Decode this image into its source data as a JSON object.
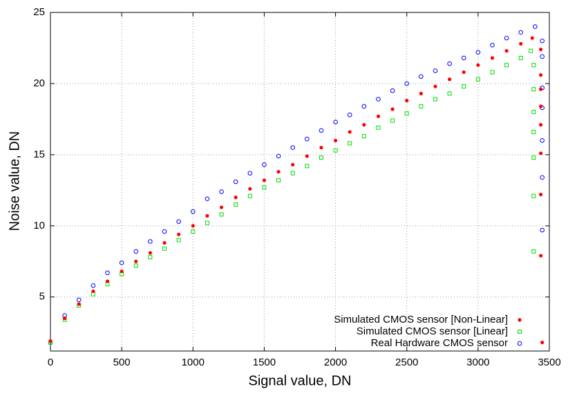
{
  "chart_data": {
    "type": "scatter",
    "xlabel": "Signal value, DN",
    "ylabel": "Noise value, DN",
    "xlim": [
      0,
      3500
    ],
    "ylim": [
      1.2,
      25
    ],
    "xticks": [
      0,
      500,
      1000,
      1500,
      2000,
      2500,
      3000,
      3500
    ],
    "yticks": [
      5,
      10,
      15,
      20,
      25
    ],
    "grid": true,
    "legend": "lower right",
    "series": [
      {
        "name": "Simulated CMOS sensor [Non-Linear]",
        "color": "#ff0000",
        "marker": "filled-circle",
        "x": [
          0,
          100,
          200,
          300,
          400,
          500,
          600,
          700,
          800,
          900,
          1000,
          1100,
          1200,
          1300,
          1400,
          1500,
          1600,
          1700,
          1800,
          1900,
          2000,
          2100,
          2200,
          2300,
          2400,
          2500,
          2600,
          2700,
          2800,
          2900,
          3000,
          3100,
          3200,
          3300,
          3380,
          3440,
          3440,
          3440,
          3440,
          3440,
          3440,
          3440,
          3440,
          3450
        ],
        "values": [
          1.9,
          3.5,
          4.5,
          5.4,
          6.1,
          6.8,
          7.5,
          8.1,
          8.8,
          9.4,
          10.0,
          10.7,
          11.3,
          12.0,
          12.6,
          13.2,
          13.8,
          14.3,
          14.9,
          15.5,
          16.0,
          16.6,
          17.1,
          17.7,
          18.2,
          18.8,
          19.3,
          19.8,
          20.3,
          20.8,
          21.3,
          21.8,
          22.3,
          22.8,
          23.2,
          22.4,
          20.6,
          19.6,
          18.4,
          17.1,
          15.1,
          12.2,
          7.9,
          1.8
        ]
      },
      {
        "name": "Simulated CMOS sensor [Linear]",
        "color": "#00dd00",
        "marker": "open-square",
        "x": [
          0,
          100,
          200,
          300,
          400,
          500,
          600,
          700,
          800,
          900,
          1000,
          1100,
          1200,
          1300,
          1400,
          1500,
          1600,
          1700,
          1800,
          1900,
          2000,
          2100,
          2200,
          2300,
          2400,
          2500,
          2600,
          2700,
          2800,
          2900,
          3000,
          3100,
          3200,
          3300,
          3370,
          3390,
          3390,
          3390,
          3390,
          3390,
          3390,
          3390
        ],
        "values": [
          1.8,
          3.4,
          4.4,
          5.2,
          5.9,
          6.6,
          7.2,
          7.8,
          8.4,
          9.0,
          9.6,
          10.2,
          10.8,
          11.5,
          12.1,
          12.7,
          13.2,
          13.7,
          14.2,
          14.8,
          15.3,
          15.8,
          16.3,
          16.9,
          17.4,
          17.9,
          18.4,
          18.9,
          19.3,
          19.8,
          20.3,
          20.8,
          21.3,
          21.8,
          22.3,
          21.3,
          19.6,
          18.0,
          16.6,
          14.8,
          12.1,
          8.2
        ]
      },
      {
        "name": "Real Hardware CMOS sensor",
        "color": "#0000ff",
        "marker": "open-circle",
        "x": [
          0,
          100,
          200,
          300,
          400,
          500,
          600,
          700,
          800,
          900,
          1000,
          1100,
          1200,
          1300,
          1400,
          1500,
          1600,
          1700,
          1800,
          1900,
          2000,
          2100,
          2200,
          2300,
          2400,
          2500,
          2600,
          2700,
          2800,
          2900,
          3000,
          3100,
          3200,
          3300,
          3400,
          3450,
          3450,
          3450,
          3450,
          3450,
          3450,
          3450
        ],
        "values": [
          1.8,
          3.7,
          4.8,
          5.8,
          6.7,
          7.4,
          8.2,
          8.9,
          9.6,
          10.3,
          11.0,
          11.9,
          12.4,
          13.1,
          13.7,
          14.3,
          14.9,
          15.5,
          16.1,
          16.7,
          17.3,
          17.8,
          18.4,
          18.9,
          19.5,
          20.0,
          20.5,
          20.9,
          21.4,
          21.8,
          22.2,
          22.7,
          23.2,
          23.6,
          24.0,
          23.0,
          21.9,
          19.7,
          18.3,
          16.0,
          13.4,
          9.7
        ]
      }
    ]
  }
}
